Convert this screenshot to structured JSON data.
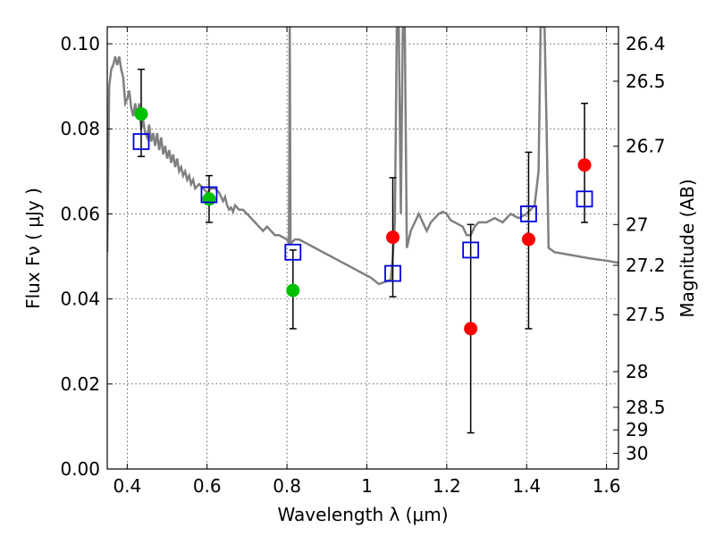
{
  "chart_data": {
    "type": "scatter",
    "xlabel": "Wavelength  λ (μm)",
    "ylabel": "Flux  Fν  ( μJy )",
    "y2label": "Magnitude (AB)",
    "xlim": [
      0.35,
      1.63
    ],
    "ylim": [
      0.0,
      0.104
    ],
    "grid": true,
    "x_ticks": [
      0.4,
      0.6,
      0.8,
      1.0,
      1.2,
      1.4,
      1.6
    ],
    "x_tick_labels": [
      "0.4",
      "0.6",
      "0.8",
      "1",
      "1.2",
      "1.4",
      "1.6"
    ],
    "y_ticks": [
      0.0,
      0.02,
      0.04,
      0.06,
      0.08,
      0.1
    ],
    "y_tick_labels": [
      "0.00",
      "0.02",
      "0.04",
      "0.06",
      "0.08",
      "0.10"
    ],
    "y2_ticks": [
      {
        "label": "26.4",
        "flux": 0.1
      },
      {
        "label": "26.5",
        "flux": 0.0912
      },
      {
        "label": "26.7",
        "flux": 0.0759
      },
      {
        "label": "27",
        "flux": 0.0575
      },
      {
        "label": "27.2",
        "flux": 0.0479
      },
      {
        "label": "27.5",
        "flux": 0.0363
      },
      {
        "label": "28",
        "flux": 0.0229
      },
      {
        "label": "28.5",
        "flux": 0.0145
      },
      {
        "label": "29",
        "flux": 0.0092
      },
      {
        "label": "30",
        "flux": 0.0037
      }
    ],
    "series": [
      {
        "marker": "line",
        "color": "#808080",
        "points": [
          [
            0.35,
            0.051
          ],
          [
            0.355,
            0.09
          ],
          [
            0.36,
            0.094
          ],
          [
            0.365,
            0.095
          ],
          [
            0.37,
            0.097
          ],
          [
            0.375,
            0.095
          ],
          [
            0.38,
            0.097
          ],
          [
            0.385,
            0.094
          ],
          [
            0.39,
            0.092
          ],
          [
            0.395,
            0.086
          ],
          [
            0.4,
            0.087
          ],
          [
            0.405,
            0.089
          ],
          [
            0.41,
            0.085
          ],
          [
            0.415,
            0.083
          ],
          [
            0.42,
            0.086
          ],
          [
            0.425,
            0.083
          ],
          [
            0.43,
            0.086
          ],
          [
            0.435,
            0.08
          ],
          [
            0.44,
            0.082
          ],
          [
            0.445,
            0.079
          ],
          [
            0.45,
            0.078
          ],
          [
            0.455,
            0.081
          ],
          [
            0.46,
            0.077
          ],
          [
            0.465,
            0.079
          ],
          [
            0.47,
            0.076
          ],
          [
            0.475,
            0.079
          ],
          [
            0.48,
            0.075
          ],
          [
            0.485,
            0.078
          ],
          [
            0.49,
            0.074
          ],
          [
            0.495,
            0.076
          ],
          [
            0.5,
            0.073
          ],
          [
            0.505,
            0.075
          ],
          [
            0.51,
            0.072
          ],
          [
            0.515,
            0.074
          ],
          [
            0.52,
            0.071
          ],
          [
            0.525,
            0.073
          ],
          [
            0.53,
            0.07
          ],
          [
            0.535,
            0.071
          ],
          [
            0.54,
            0.069
          ],
          [
            0.545,
            0.07
          ],
          [
            0.55,
            0.068
          ],
          [
            0.555,
            0.069
          ],
          [
            0.56,
            0.067
          ],
          [
            0.565,
            0.068
          ],
          [
            0.57,
            0.066
          ],
          [
            0.58,
            0.067
          ],
          [
            0.59,
            0.066
          ],
          [
            0.6,
            0.065
          ],
          [
            0.61,
            0.066
          ],
          [
            0.62,
            0.066
          ],
          [
            0.63,
            0.065
          ],
          [
            0.64,
            0.063
          ],
          [
            0.645,
            0.064
          ],
          [
            0.65,
            0.062
          ],
          [
            0.655,
            0.061
          ],
          [
            0.66,
            0.0615
          ],
          [
            0.665,
            0.0605
          ],
          [
            0.67,
            0.062
          ],
          [
            0.68,
            0.061
          ],
          [
            0.69,
            0.061
          ],
          [
            0.7,
            0.06
          ],
          [
            0.71,
            0.059
          ],
          [
            0.72,
            0.058
          ],
          [
            0.73,
            0.057
          ],
          [
            0.74,
            0.056
          ],
          [
            0.75,
            0.057
          ],
          [
            0.76,
            0.056
          ],
          [
            0.77,
            0.055
          ],
          [
            0.78,
            0.055
          ],
          [
            0.79,
            0.0545
          ],
          [
            0.8,
            0.054
          ],
          [
            0.805,
            0.053
          ],
          [
            0.807,
            0.104
          ],
          [
            0.809,
            0.053
          ],
          [
            0.82,
            0.054
          ],
          [
            0.83,
            0.054
          ],
          [
            0.85,
            0.053
          ],
          [
            0.87,
            0.052
          ],
          [
            0.89,
            0.051
          ],
          [
            0.91,
            0.05
          ],
          [
            0.93,
            0.049
          ],
          [
            0.95,
            0.048
          ],
          [
            0.97,
            0.047
          ],
          [
            0.99,
            0.046
          ],
          [
            1.01,
            0.045
          ],
          [
            1.03,
            0.0435
          ],
          [
            1.045,
            0.044
          ],
          [
            1.06,
            0.0445
          ],
          [
            1.065,
            0.05
          ],
          [
            1.07,
            0.058
          ],
          [
            1.075,
            0.104
          ],
          [
            1.08,
            0.104
          ],
          [
            1.085,
            0.06
          ],
          [
            1.09,
            0.104
          ],
          [
            1.095,
            0.104
          ],
          [
            1.1,
            0.052
          ],
          [
            1.11,
            0.056
          ],
          [
            1.12,
            0.058
          ],
          [
            1.13,
            0.06
          ],
          [
            1.14,
            0.058
          ],
          [
            1.15,
            0.056
          ],
          [
            1.16,
            0.058
          ],
          [
            1.17,
            0.059
          ],
          [
            1.18,
            0.06
          ],
          [
            1.19,
            0.0605
          ],
          [
            1.2,
            0.06
          ],
          [
            1.21,
            0.0585
          ],
          [
            1.22,
            0.058
          ],
          [
            1.23,
            0.0575
          ],
          [
            1.24,
            0.057
          ],
          [
            1.25,
            0.055
          ],
          [
            1.26,
            0.055
          ],
          [
            1.27,
            0.057
          ],
          [
            1.28,
            0.058
          ],
          [
            1.3,
            0.058
          ],
          [
            1.32,
            0.059
          ],
          [
            1.34,
            0.058
          ],
          [
            1.36,
            0.06
          ],
          [
            1.38,
            0.059
          ],
          [
            1.4,
            0.06
          ],
          [
            1.42,
            0.062
          ],
          [
            1.43,
            0.07
          ],
          [
            1.435,
            0.104
          ],
          [
            1.445,
            0.104
          ],
          [
            1.45,
            0.08
          ],
          [
            1.455,
            0.052
          ],
          [
            1.47,
            0.051
          ],
          [
            1.5,
            0.0505
          ],
          [
            1.53,
            0.05
          ],
          [
            1.56,
            0.0495
          ],
          [
            1.6,
            0.049
          ],
          [
            1.63,
            0.0485
          ]
        ]
      },
      {
        "marker": "circle",
        "color": "#00c000",
        "points": [
          [
            0.435,
            0.0835
          ],
          [
            0.605,
            0.0635
          ],
          [
            0.815,
            0.042
          ]
        ]
      },
      {
        "marker": "circle",
        "color": "#ff0000",
        "points": [
          [
            1.065,
            0.0545
          ],
          [
            1.26,
            0.033
          ],
          [
            1.405,
            0.054
          ],
          [
            1.545,
            0.0715
          ]
        ]
      },
      {
        "marker": "square",
        "color": "#0000dd",
        "points": [
          [
            0.435,
            0.077
          ],
          [
            0.605,
            0.0645
          ],
          [
            0.815,
            0.051
          ],
          [
            1.065,
            0.046
          ],
          [
            1.26,
            0.0515
          ],
          [
            1.405,
            0.06
          ],
          [
            1.545,
            0.0635
          ]
        ]
      }
    ],
    "error_bars": [
      {
        "x": 0.435,
        "low": 0.0735,
        "high": 0.094
      },
      {
        "x": 0.605,
        "low": 0.058,
        "high": 0.069
      },
      {
        "x": 0.815,
        "low": 0.033,
        "high": 0.0515
      },
      {
        "x": 1.065,
        "low": 0.0405,
        "high": 0.0685
      },
      {
        "x": 1.26,
        "low": 0.0085,
        "high": 0.0575
      },
      {
        "x": 1.405,
        "low": 0.033,
        "high": 0.0745
      },
      {
        "x": 1.545,
        "low": 0.058,
        "high": 0.086
      }
    ]
  }
}
